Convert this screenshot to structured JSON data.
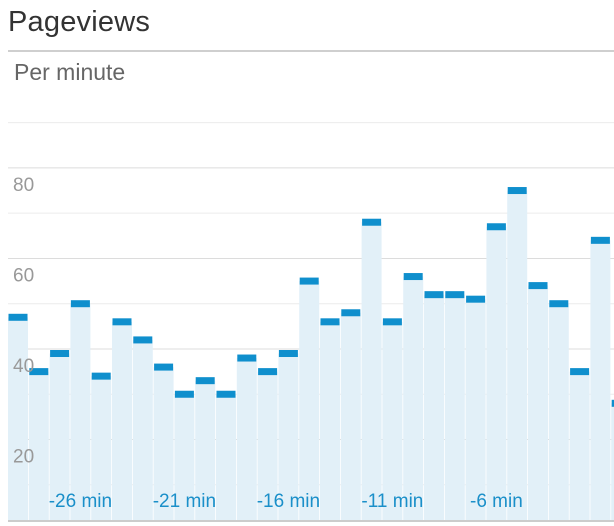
{
  "header": {
    "title": "Pageviews",
    "subtitle": "Per minute"
  },
  "colors": {
    "bar_cap": "#0f8fcd",
    "bar_fill": "#e2f0f8",
    "grid": "#e6e6e6",
    "y_tick_text": "#999999",
    "x_tick_text": "#1a8fc9"
  },
  "chart_data": {
    "type": "bar",
    "title": "Pageviews",
    "subtitle": "Per minute",
    "xlabel": "",
    "ylabel": "",
    "ylim": [
      2,
      95
    ],
    "grid": true,
    "y_ticks": [
      20,
      40,
      60,
      80
    ],
    "x_ticks": [
      "-26 min",
      "-21 min",
      "-16 min",
      "-11 min",
      "-6 min"
    ],
    "values": [
      47,
      35,
      39,
      50,
      34,
      46,
      42,
      36,
      30,
      33,
      30,
      38,
      35,
      39,
      55,
      46,
      48,
      68,
      46,
      56,
      52,
      52,
      51,
      67,
      75,
      54,
      50,
      35,
      64,
      28
    ]
  }
}
